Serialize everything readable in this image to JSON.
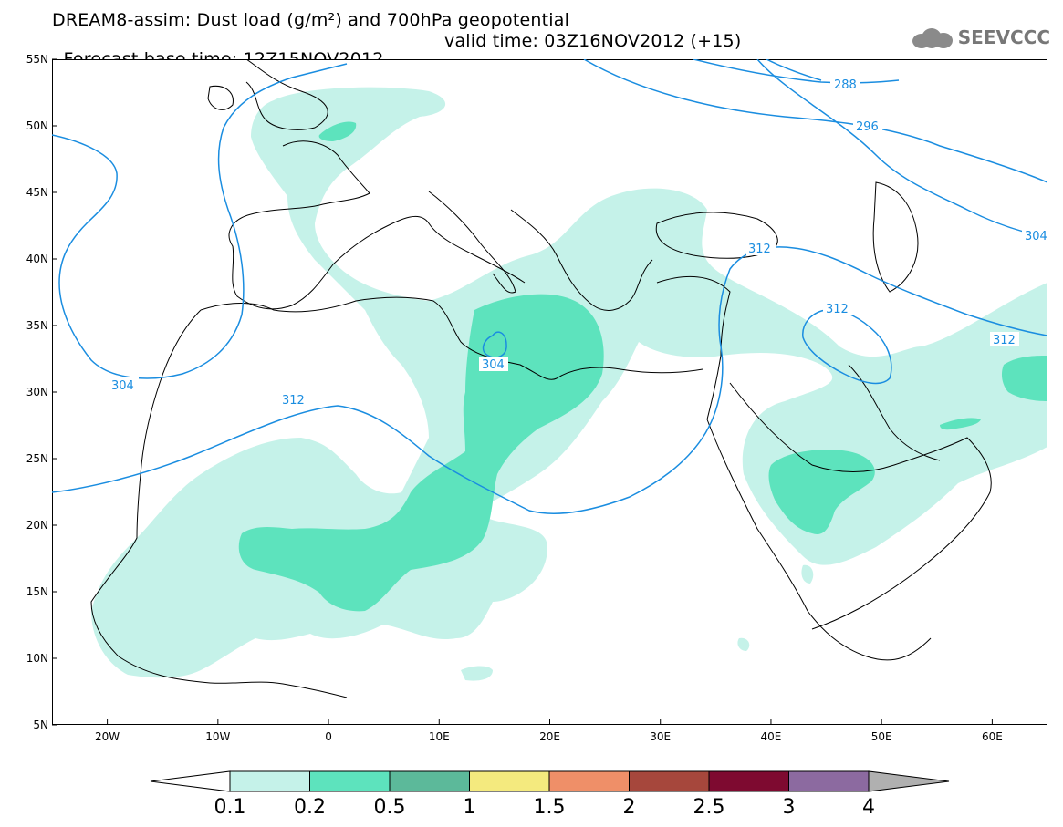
{
  "header": {
    "line1": "DREAM8-assim: Dust load (g/m²) and 700hPa geopotential",
    "line2_base": "Forecast base time: 12Z15NOV2012",
    "line2_valid": "valid time: 03Z16NOV2012 (+15)",
    "logo_text": "SEEVCCC"
  },
  "map": {
    "lat_labels": [
      "55N",
      "50N",
      "45N",
      "40N",
      "35N",
      "30N",
      "25N",
      "20N",
      "15N",
      "10N",
      "5N"
    ],
    "lat_values": [
      55,
      50,
      45,
      40,
      35,
      30,
      25,
      20,
      15,
      10,
      5
    ],
    "lon_labels": [
      "20W",
      "10W",
      "0",
      "10E",
      "20E",
      "30E",
      "40E",
      "50E",
      "60E"
    ],
    "lon_values": [
      -20,
      -10,
      0,
      10,
      20,
      30,
      40,
      50,
      60
    ],
    "lon_range": [
      -25,
      65
    ],
    "lat_range": [
      5,
      55
    ],
    "contour_color": "#1a8de0",
    "contour_labels": [
      "288",
      "296",
      "304",
      "304",
      "304",
      "312",
      "312",
      "312",
      "312"
    ]
  },
  "colorbar": {
    "labels": [
      "0.1",
      "0.2",
      "0.5",
      "1",
      "1.5",
      "2",
      "2.5",
      "3",
      "4"
    ],
    "colors": [
      "#c5f2e9",
      "#5de3bd",
      "#5cb99a",
      "#f4ea7e",
      "#ef8f68",
      "#a6473c",
      "#7e0a30",
      "#8c6aa0"
    ],
    "low_color": "#ffffff",
    "high_color": "#b0b0b0"
  },
  "colors": {
    "dust_light": "#c5f2e9",
    "dust_mid": "#5de3bd",
    "dust_dark": "#5cb99a"
  }
}
